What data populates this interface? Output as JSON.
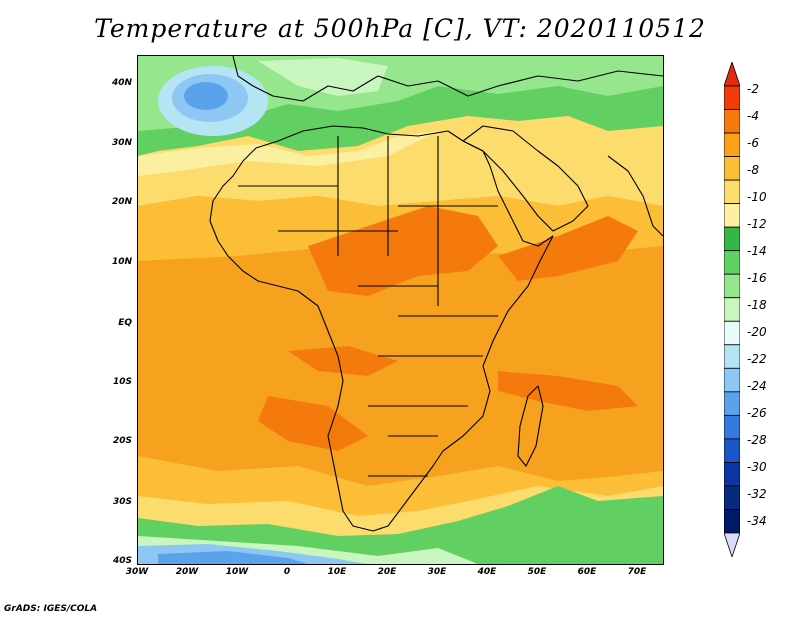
{
  "title": "Temperature at 500hPa [C], VT: 2020110512",
  "credit": "GrADS: IGES/COLA",
  "map": {
    "lon_range": [
      -30,
      75
    ],
    "lat_range": [
      -40,
      45
    ],
    "lat_ticks": [
      "40N",
      "30N",
      "20N",
      "10N",
      "EQ",
      "10S",
      "20S",
      "30S",
      "40S"
    ],
    "lon_ticks": [
      "30W",
      "20W",
      "10W",
      "0",
      "10E",
      "20E",
      "30E",
      "40E",
      "50E",
      "60E",
      "70E"
    ],
    "fields": {
      "background": "#f6a21e",
      "lake_victoria": "#eba62a"
    }
  },
  "colorbar": {
    "labels": [
      "-2",
      "-4",
      "-6",
      "-8",
      "-10",
      "-12",
      "-14",
      "-16",
      "-18",
      "-20",
      "-22",
      "-24",
      "-26",
      "-28",
      "-30",
      "-32",
      "-34"
    ],
    "colors": [
      "#f03c0a",
      "#f57a0e",
      "#f8a219",
      "#fbbe36",
      "#fddc6e",
      "#fbf0a2",
      "#36b644",
      "#62cf63",
      "#96e68e",
      "#c9f6bf",
      "#e6fbfb",
      "#b5e4f4",
      "#8ec7f3",
      "#5aa3ec",
      "#3479dd",
      "#1b56c6",
      "#0c36a6",
      "#062a7d",
      "#00196b"
    ],
    "top_arrow_color": "#e32a0b",
    "bottom_arrow_color": "#d8ddf7"
  }
}
